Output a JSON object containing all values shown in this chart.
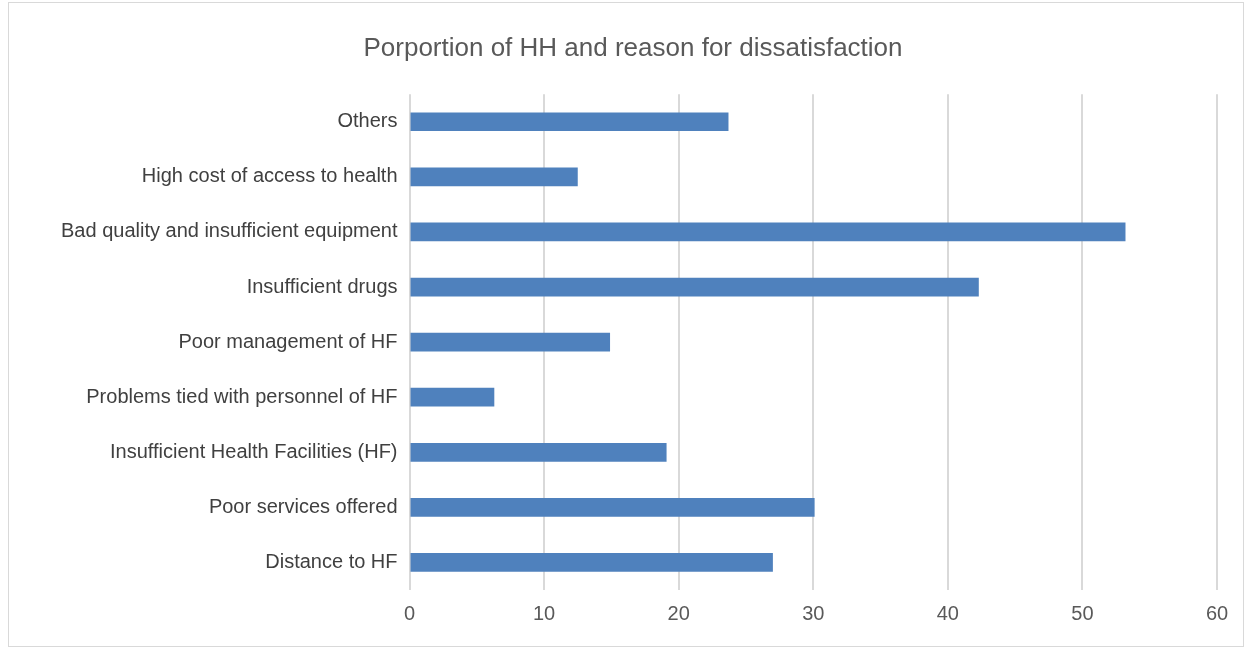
{
  "chart_data": {
    "type": "bar",
    "orientation": "horizontal",
    "title": "Porportion of HH and reason for dissatisfaction",
    "categories": [
      "Others",
      "High cost of access to health",
      "Bad quality and insufficient equipment",
      "Insufficient drugs",
      "Poor management of HF",
      "Problems tied with personnel of HF",
      "Insufficient Health Facilities (HF)",
      "Poor services offered",
      "Distance to HF"
    ],
    "values": [
      23.7,
      12.5,
      53.2,
      42.3,
      14.9,
      6.3,
      19.1,
      30.1,
      27.0
    ],
    "color": "#4f81bd",
    "xlim": [
      0,
      60
    ],
    "xticks": [
      0,
      10,
      20,
      30,
      40,
      50,
      60
    ],
    "grid": "x",
    "legend": false
  }
}
